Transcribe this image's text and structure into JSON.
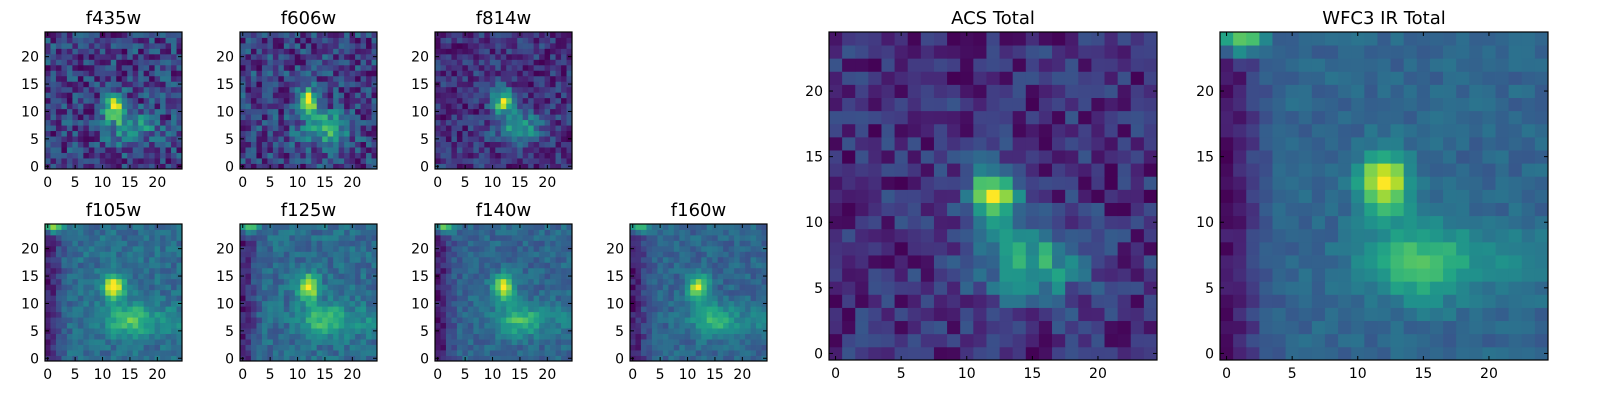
{
  "chart_data": [
    {
      "type": "heatmap",
      "title": "f435w",
      "xlim": [
        0,
        24
      ],
      "ylim": [
        0,
        24
      ],
      "xticks": [
        0,
        5,
        10,
        15,
        20
      ],
      "yticks": [
        0,
        5,
        10,
        15,
        20
      ],
      "grid_size": 25,
      "colormap": "viridis",
      "peak": [
        12,
        11
      ],
      "noise_level": 0.55,
      "features": [
        "compact core near (12, 12)",
        "diffuse emission near (14, 7)"
      ]
    },
    {
      "type": "heatmap",
      "title": "f606w",
      "xlim": [
        0,
        24
      ],
      "ylim": [
        0,
        24
      ],
      "xticks": [
        0,
        5,
        10,
        15,
        20
      ],
      "yticks": [
        0,
        5,
        10,
        15,
        20
      ],
      "grid_size": 25,
      "colormap": "viridis",
      "peak": [
        12,
        12
      ],
      "noise_level": 0.45,
      "features": [
        "compact core near (12, 12)",
        "diffuse emission near (14, 7)"
      ]
    },
    {
      "type": "heatmap",
      "title": "f814w",
      "xlim": [
        0,
        24
      ],
      "ylim": [
        0,
        24
      ],
      "xticks": [
        0,
        5,
        10,
        15,
        20
      ],
      "yticks": [
        0,
        5,
        10,
        15,
        20
      ],
      "grid_size": 25,
      "colormap": "viridis",
      "peak": [
        12,
        12
      ],
      "noise_level": 0.4,
      "features": [
        "compact core near (12, 12)",
        "diffuse emission near (14, 7)"
      ]
    },
    {
      "type": "heatmap",
      "title": "f105w",
      "xlim": [
        0,
        24
      ],
      "ylim": [
        0,
        24
      ],
      "xticks": [
        0,
        5,
        10,
        15,
        20
      ],
      "yticks": [
        0,
        5,
        10,
        15,
        20
      ],
      "grid_size": 25,
      "colormap": "viridis",
      "peak": [
        12,
        13
      ],
      "noise_level": 0.25,
      "features": [
        "compact core near (12, 13)",
        "extended emission near (14, 7)",
        "bright source top-left corner",
        "dark region left edge"
      ]
    },
    {
      "type": "heatmap",
      "title": "f125w",
      "xlim": [
        0,
        24
      ],
      "ylim": [
        0,
        24
      ],
      "xticks": [
        0,
        5,
        10,
        15,
        20
      ],
      "yticks": [
        0,
        5,
        10,
        15,
        20
      ],
      "grid_size": 25,
      "colormap": "viridis",
      "peak": [
        12,
        13
      ],
      "noise_level": 0.28,
      "features": [
        "compact core near (12, 13)",
        "extended emission near (14, 7)",
        "bright source top-left corner"
      ]
    },
    {
      "type": "heatmap",
      "title": "f140w",
      "xlim": [
        0,
        24
      ],
      "ylim": [
        0,
        24
      ],
      "xticks": [
        0,
        5,
        10,
        15,
        20
      ],
      "yticks": [
        0,
        5,
        10,
        15,
        20
      ],
      "grid_size": 25,
      "colormap": "viridis",
      "peak": [
        12,
        13
      ],
      "noise_level": 0.25,
      "features": [
        "compact core near (12, 13)",
        "extended emission near (16, 8)",
        "bright source top-left corner",
        "dark region left edge"
      ]
    },
    {
      "type": "heatmap",
      "title": "f160w",
      "xlim": [
        0,
        24
      ],
      "ylim": [
        0,
        24
      ],
      "xticks": [
        0,
        5,
        10,
        15,
        20
      ],
      "yticks": [
        0,
        5,
        10,
        15,
        20
      ],
      "grid_size": 25,
      "colormap": "viridis",
      "peak": [
        12,
        13
      ],
      "noise_level": 0.25,
      "features": [
        "compact core near (12, 13)",
        "extended emission near (16, 7)",
        "bright source top-left corner",
        "dark region left edge"
      ]
    },
    {
      "type": "heatmap",
      "title": "ACS Total",
      "xlim": [
        0,
        24
      ],
      "ylim": [
        0,
        24
      ],
      "xticks": [
        0,
        5,
        10,
        15,
        20
      ],
      "yticks": [
        0,
        5,
        10,
        15,
        20
      ],
      "grid_size": 25,
      "colormap": "viridis",
      "peak": [
        12,
        12
      ],
      "noise_level": 0.3,
      "features": [
        "compact core near (12, 12)",
        "diffuse emission near (14, 7)"
      ]
    },
    {
      "type": "heatmap",
      "title": "WFC3 IR Total",
      "xlim": [
        0,
        24
      ],
      "ylim": [
        0,
        24
      ],
      "xticks": [
        0,
        5,
        10,
        15,
        20
      ],
      "yticks": [
        0,
        5,
        10,
        15,
        20
      ],
      "grid_size": 25,
      "colormap": "viridis",
      "peak": [
        12,
        13
      ],
      "noise_level": 0.15,
      "features": [
        "compact core near (12, 13)",
        "extended emission near (16, 7)",
        "bright source top-left corner",
        "dark region left edge"
      ]
    }
  ]
}
